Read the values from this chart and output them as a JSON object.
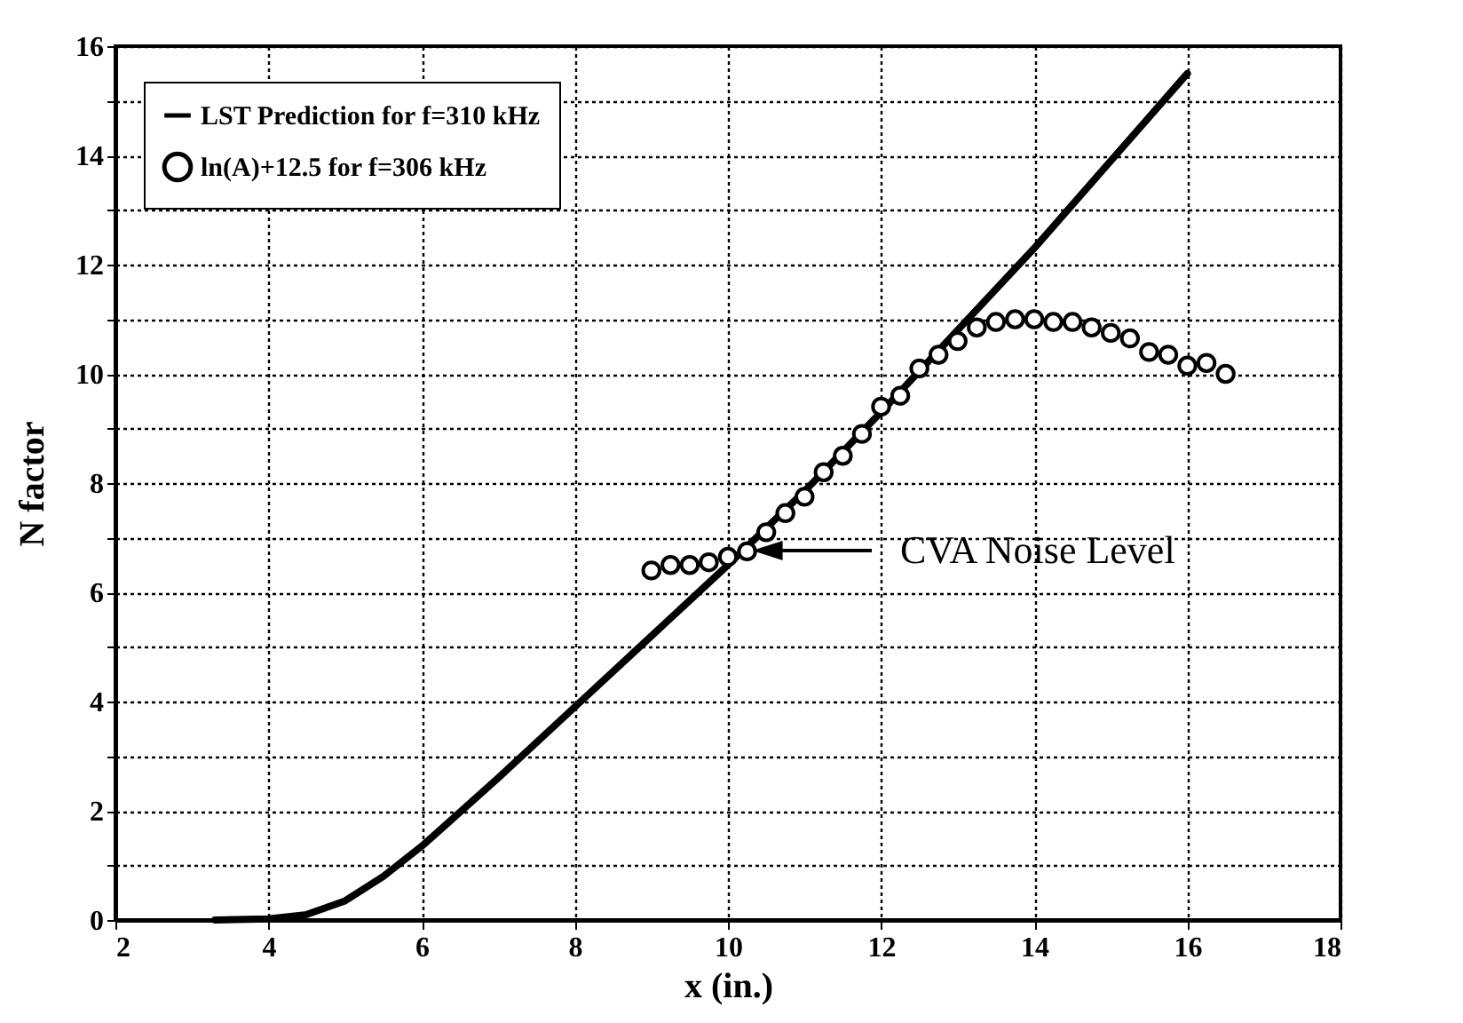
{
  "chart_data": {
    "type": "line",
    "xlabel": "x (in.)",
    "ylabel": "N factor",
    "xlim": [
      2,
      18
    ],
    "xticks": [
      2,
      4,
      6,
      8,
      10,
      12,
      14,
      16,
      18
    ],
    "ylim": [
      0,
      16
    ],
    "yticks": [
      0,
      {
        "value": 1,
        "label": null
      },
      2,
      {
        "value": 3,
        "label": null
      },
      4,
      {
        "value": 5,
        "label": null
      },
      6,
      {
        "value": 7,
        "label": null
      },
      8,
      {
        "value": 9,
        "label": null
      },
      10,
      {
        "value": 11,
        "label": null
      },
      12,
      {
        "value": 13,
        "label": null
      },
      14,
      {
        "value": 15,
        "label": null
      },
      16
    ],
    "grid": true,
    "legend": "top left",
    "series": [
      {
        "name": "LST Prediction for f=310 kHz",
        "color": "#000000",
        "line_style": "solid",
        "x": [
          3.3,
          4,
          4.5,
          5,
          5.5,
          6,
          7,
          8,
          9,
          10,
          11,
          12,
          13,
          14,
          15,
          16
        ],
        "values": [
          0,
          0.02,
          0.1,
          0.35,
          0.8,
          1.35,
          2.6,
          3.9,
          5.2,
          6.5,
          7.85,
          9.3,
          10.8,
          12.3,
          13.9,
          15.5
        ]
      },
      {
        "name": "ln(A)+12.5 for f=306 kHz",
        "type": "scatter",
        "marker": "circle",
        "color": "#000000",
        "x": [
          9,
          9.25,
          9.5,
          9.75,
          10,
          10.25,
          10.5,
          10.75,
          11,
          11.25,
          11.5,
          11.75,
          12,
          12.25,
          12.5,
          12.75,
          13,
          13.25,
          13.5,
          13.75,
          14,
          14.25,
          14.5,
          14.75,
          15,
          15.25,
          15.5,
          15.75,
          16,
          16.25,
          16.5
        ],
        "values": [
          6.4,
          6.5,
          6.5,
          6.55,
          6.65,
          6.75,
          7.1,
          7.45,
          7.75,
          8.2,
          8.5,
          8.9,
          9.4,
          9.6,
          10.1,
          10.35,
          10.6,
          10.85,
          10.95,
          11,
          11,
          10.95,
          10.95,
          10.85,
          10.75,
          10.65,
          10.4,
          10.35,
          10.15,
          10.2,
          10
        ]
      }
    ],
    "annotations": [
      "CVA Noise Level"
    ]
  }
}
